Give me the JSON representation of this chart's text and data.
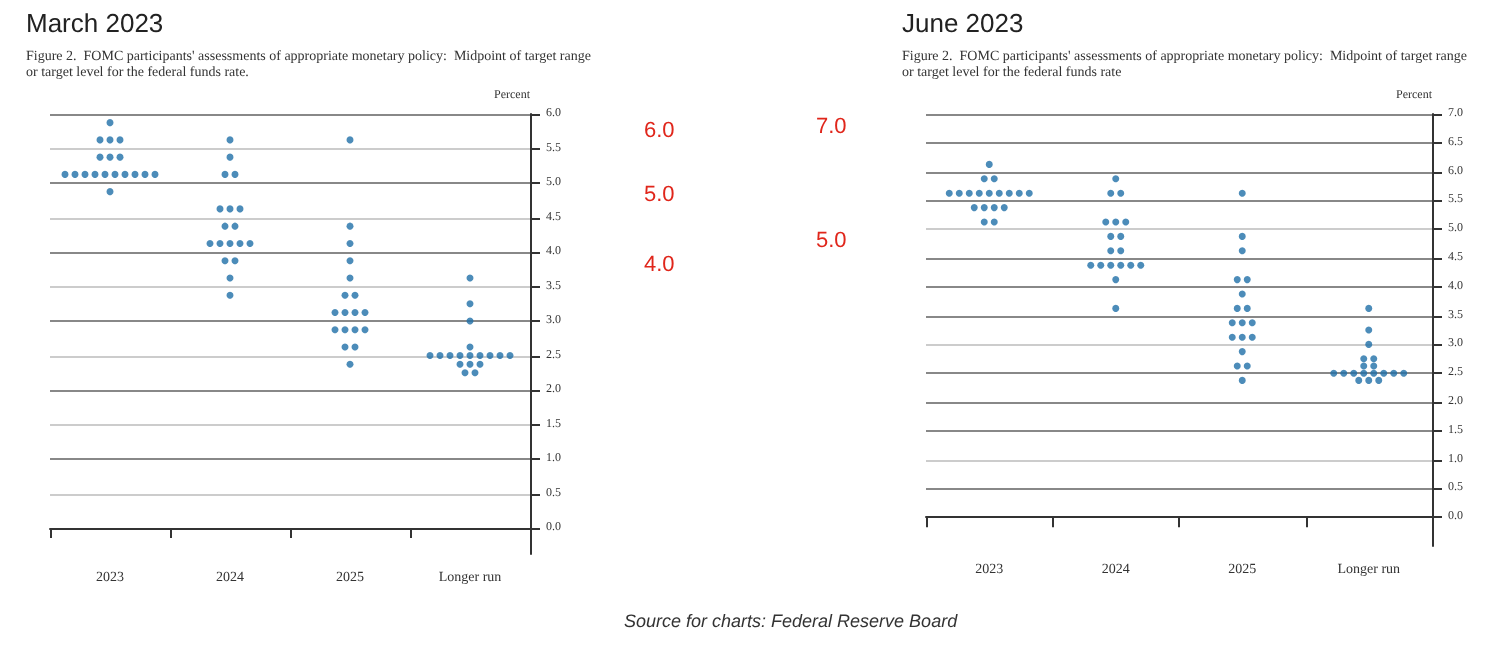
{
  "chart_data": [
    {
      "type": "scatter",
      "title": "March 2023",
      "subtitle": "Figure 2.  FOMC participants' assessments of appropriate monetary policy:  Midpoint of target range or target level for the federal funds rate.",
      "ylabel": "Percent",
      "categories": [
        "2023",
        "2024",
        "2025",
        "Longer run"
      ],
      "marker": "circle",
      "grid": "y",
      "ylim": [
        -0.375,
        6
      ],
      "yticks": [
        {
          "value": 0,
          "label": "0.0"
        },
        {
          "value": 0.5,
          "label": "0.5"
        },
        {
          "value": 1,
          "label": "1.0"
        },
        {
          "value": 1.5,
          "label": "1.5"
        },
        {
          "value": 2,
          "label": "2.0"
        },
        {
          "value": 2.5,
          "label": "2.5"
        },
        {
          "value": 3,
          "label": "3.0"
        },
        {
          "value": 3.5,
          "label": "3.5"
        },
        {
          "value": 4,
          "label": "4.0"
        },
        {
          "value": 4.5,
          "label": "4.5"
        },
        {
          "value": 5,
          "label": "5.0"
        },
        {
          "value": 5.5,
          "label": "5.5"
        },
        {
          "value": 6,
          "label": "6.0"
        }
      ],
      "annotations": [
        "6.0",
        "5.0",
        "4.0"
      ],
      "series": [
        {
          "color": "#1f6fa8",
          "values": [
            5.875,
            5.625,
            5.625,
            3.625
          ]
        },
        {
          "color": "#1f6fa8",
          "values": [
            5.625,
            5.375,
            4.375,
            3.25
          ]
        },
        {
          "color": "#1f6fa8",
          "values": [
            5.625,
            5.125,
            4.125,
            3.0
          ]
        },
        {
          "color": "#1f6fa8",
          "values": [
            5.625,
            5.125,
            3.875,
            2.625
          ]
        },
        {
          "color": "#1f6fa8",
          "values": [
            5.375,
            4.625,
            3.625,
            2.5
          ]
        },
        {
          "color": "#1f6fa8",
          "values": [
            5.375,
            4.625,
            3.375,
            2.5
          ]
        },
        {
          "color": "#1f6fa8",
          "values": [
            5.375,
            4.625,
            3.375,
            2.5
          ]
        },
        {
          "color": "#1f6fa8",
          "values": [
            5.125,
            4.375,
            3.125,
            2.5
          ]
        },
        {
          "color": "#1f6fa8",
          "values": [
            5.125,
            4.375,
            3.125,
            2.5
          ]
        },
        {
          "color": "#1f6fa8",
          "values": [
            5.125,
            4.125,
            3.125,
            2.5
          ]
        },
        {
          "color": "#1f6fa8",
          "values": [
            5.125,
            4.125,
            3.125,
            2.5
          ]
        },
        {
          "color": "#1f6fa8",
          "values": [
            5.125,
            4.125,
            2.875,
            2.5
          ]
        },
        {
          "color": "#1f6fa8",
          "values": [
            5.125,
            4.125,
            2.875,
            2.5
          ]
        },
        {
          "color": "#1f6fa8",
          "values": [
            5.125,
            4.125,
            2.875,
            2.375
          ]
        },
        {
          "color": "#1f6fa8",
          "values": [
            5.125,
            3.875,
            2.875,
            2.375
          ]
        },
        {
          "color": "#1f6fa8",
          "values": [
            5.125,
            3.875,
            2.625,
            2.375
          ]
        },
        {
          "color": "#1f6fa8",
          "values": [
            5.125,
            3.625,
            2.625,
            2.25
          ]
        },
        {
          "color": "#1f6fa8",
          "values": [
            4.875,
            3.375,
            2.375,
            2.25
          ]
        }
      ]
    },
    {
      "type": "scatter",
      "title": "June 2023",
      "subtitle": "Figure 2.  FOMC participants' assessments of appropriate monetary policy:  Midpoint of target range or target level for the federal funds rate",
      "ylabel": "Percent",
      "categories": [
        "2023",
        "2024",
        "2025",
        "Longer run"
      ],
      "marker": "circle",
      "grid": "y",
      "ylim": [
        -0.5,
        7
      ],
      "yticks": [
        {
          "value": 0,
          "label": "0.0"
        },
        {
          "value": 0.5,
          "label": "0.5"
        },
        {
          "value": 1,
          "label": "1.0"
        },
        {
          "value": 1.5,
          "label": "1.5"
        },
        {
          "value": 2,
          "label": "2.0"
        },
        {
          "value": 2.5,
          "label": "2.5"
        },
        {
          "value": 3,
          "label": "3.0"
        },
        {
          "value": 3.5,
          "label": "3.5"
        },
        {
          "value": 4,
          "label": "4.0"
        },
        {
          "value": 4.5,
          "label": "4.5"
        },
        {
          "value": 5,
          "label": "5.0"
        },
        {
          "value": 5.5,
          "label": "5.5"
        },
        {
          "value": 6,
          "label": "6.0"
        },
        {
          "value": 6.5,
          "label": "6.5"
        },
        {
          "value": 7,
          "label": "7.0"
        }
      ],
      "annotations": [
        "7.0",
        "5.0",
        "Source for charts: Federal Reserve Board"
      ],
      "series": [
        {
          "color": "#1f6fa8",
          "values": [
            6.125,
            5.875,
            5.625,
            3.625
          ]
        },
        {
          "color": "#1f6fa8",
          "values": [
            5.875,
            5.625,
            4.875,
            3.25
          ]
        },
        {
          "color": "#1f6fa8",
          "values": [
            5.875,
            5.625,
            4.625,
            3.0
          ]
        },
        {
          "color": "#1f6fa8",
          "values": [
            5.625,
            5.125,
            4.125,
            2.75
          ]
        },
        {
          "color": "#1f6fa8",
          "values": [
            5.625,
            5.125,
            4.125,
            2.75
          ]
        },
        {
          "color": "#1f6fa8",
          "values": [
            5.625,
            5.125,
            3.875,
            2.625
          ]
        },
        {
          "color": "#1f6fa8",
          "values": [
            5.625,
            4.875,
            3.625,
            2.625
          ]
        },
        {
          "color": "#1f6fa8",
          "values": [
            5.625,
            4.875,
            3.625,
            2.5
          ]
        },
        {
          "color": "#1f6fa8",
          "values": [
            5.625,
            4.625,
            3.375,
            2.5
          ]
        },
        {
          "color": "#1f6fa8",
          "values": [
            5.625,
            4.625,
            3.375,
            2.5
          ]
        },
        {
          "color": "#1f6fa8",
          "values": [
            5.625,
            4.375,
            3.375,
            2.5
          ]
        },
        {
          "color": "#1f6fa8",
          "values": [
            5.625,
            4.375,
            3.125,
            2.5
          ]
        },
        {
          "color": "#1f6fa8",
          "values": [
            5.375,
            4.375,
            3.125,
            2.5
          ]
        },
        {
          "color": "#1f6fa8",
          "values": [
            5.375,
            4.375,
            3.125,
            2.5
          ]
        },
        {
          "color": "#1f6fa8",
          "values": [
            5.375,
            4.375,
            2.875,
            2.5
          ]
        },
        {
          "color": "#1f6fa8",
          "values": [
            5.375,
            4.375,
            2.625,
            2.375
          ]
        },
        {
          "color": "#1f6fa8",
          "values": [
            5.125,
            4.125,
            2.625,
            2.375
          ]
        },
        {
          "color": "#1f6fa8",
          "values": [
            5.125,
            3.625,
            2.375,
            2.375
          ]
        }
      ]
    }
  ]
}
